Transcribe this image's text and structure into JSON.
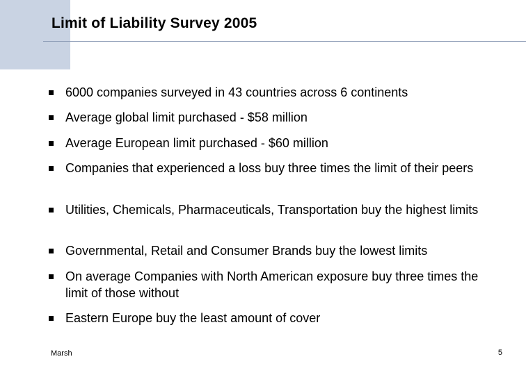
{
  "slide": {
    "title": "Limit of Liability Survey 2005",
    "bullets": [
      "6000 companies surveyed in 43 countries across 6 continents",
      "Average global limit purchased - $58 million",
      "Average European limit purchased - $60 million",
      "Companies that experienced a loss buy three times the limit of their peers",
      "Utilities, Chemicals, Pharmaceuticals, Transportation buy the highest limits",
      "Governmental, Retail and Consumer Brands buy the lowest limits",
      "On average Companies with North American exposure buy three times the limit of those without",
      "Eastern Europe buy the least amount of cover"
    ],
    "footer": {
      "brand": "Marsh",
      "page_number": "5"
    }
  },
  "colors": {
    "accent_block": "#c9d3e3",
    "title_rule": "#8a9ab4"
  }
}
